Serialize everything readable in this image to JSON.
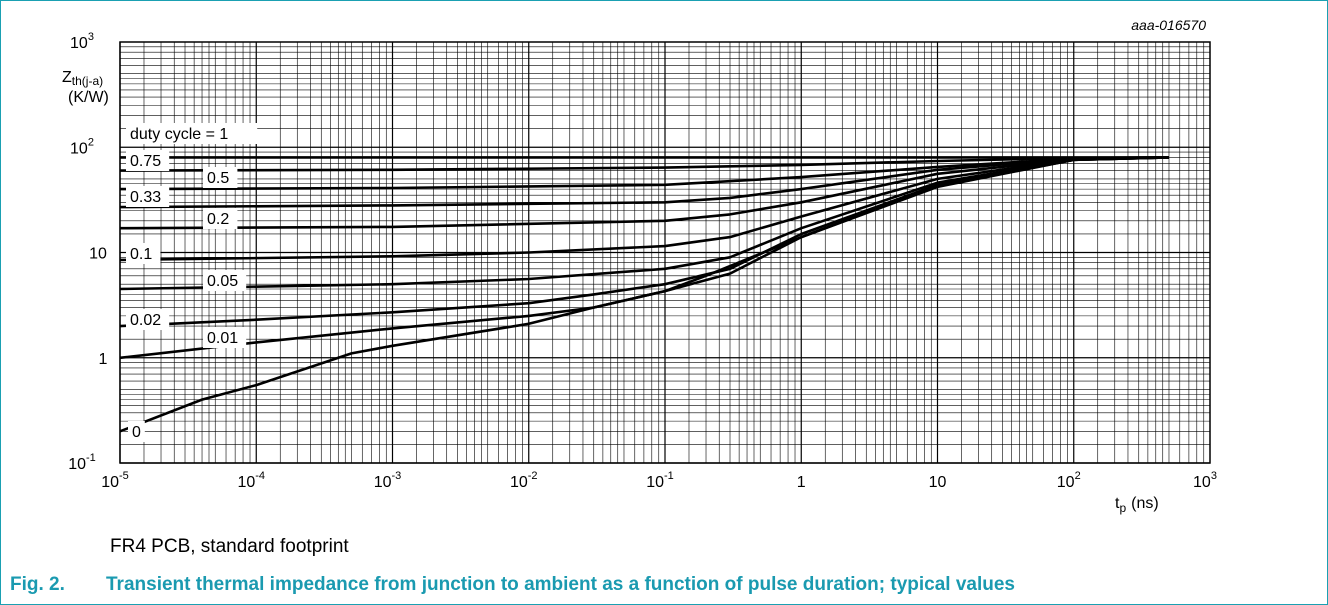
{
  "colors": {
    "frame": "#1aa0b2",
    "caption": "#1a9ab0",
    "line": "#000000"
  },
  "chart_data": {
    "type": "line",
    "id_label": "aaa-016570",
    "ylabel_main": "Z",
    "ylabel_sub": "th(j-a)",
    "ylabel_unit": "(K/W)",
    "xlabel_main": "t",
    "xlabel_sub": "p",
    "xlabel_unit": "(ns)",
    "x_scale": "log",
    "y_scale": "log",
    "xlim": [
      1e-05,
      1000
    ],
    "ylim": [
      0.1,
      1000
    ],
    "grid": true,
    "x_ticks": [
      {
        "base": "10",
        "exp": "-5",
        "value": 1e-05
      },
      {
        "base": "10",
        "exp": "-4",
        "value": 0.0001
      },
      {
        "base": "10",
        "exp": "-3",
        "value": 0.001
      },
      {
        "base": "10",
        "exp": "-2",
        "value": 0.01
      },
      {
        "base": "10",
        "exp": "-1",
        "value": 0.1
      },
      {
        "base": "1",
        "exp": "",
        "value": 1
      },
      {
        "base": "10",
        "exp": "",
        "value": 10
      },
      {
        "base": "10",
        "exp": "2",
        "value": 100
      },
      {
        "base": "10",
        "exp": "3",
        "value": 1000
      }
    ],
    "y_ticks": [
      {
        "base": "10",
        "exp": "3",
        "value": 1000
      },
      {
        "base": "10",
        "exp": "2",
        "value": 100
      },
      {
        "base": "10",
        "exp": "",
        "value": 10
      },
      {
        "base": "1",
        "exp": "",
        "value": 1
      },
      {
        "base": "10",
        "exp": "-1",
        "value": 0.1
      }
    ],
    "series": [
      {
        "name": "duty cycle = 1",
        "x": [
          1e-05,
          0.001,
          0.1,
          1,
          10,
          100,
          500
        ],
        "y": [
          80,
          80,
          80,
          80,
          80,
          80,
          80
        ]
      },
      {
        "name": "0.75",
        "x": [
          1e-05,
          0.001,
          0.1,
          1,
          10,
          100,
          500
        ],
        "y": [
          60,
          61,
          64,
          68,
          74,
          79,
          80
        ]
      },
      {
        "name": "0.5",
        "x": [
          1e-05,
          0.001,
          0.1,
          1,
          10,
          100,
          500
        ],
        "y": [
          40,
          41,
          44,
          52,
          65,
          78,
          80
        ]
      },
      {
        "name": "0.33",
        "x": [
          1e-05,
          0.001,
          0.1,
          0.3,
          1,
          10,
          100,
          500
        ],
        "y": [
          27,
          28,
          30,
          33,
          40,
          61,
          78,
          80
        ]
      },
      {
        "name": "0.2",
        "x": [
          1e-05,
          0.001,
          0.1,
          0.3,
          1,
          10,
          100,
          500
        ],
        "y": [
          17,
          17.5,
          20,
          23,
          30,
          56,
          77,
          80
        ]
      },
      {
        "name": "0.1",
        "x": [
          1e-05,
          0.001,
          0.01,
          0.1,
          0.3,
          1,
          10,
          100,
          500
        ],
        "y": [
          8.5,
          9.2,
          10,
          11.5,
          14,
          22,
          50,
          77,
          80
        ]
      },
      {
        "name": "0.05",
        "x": [
          1e-05,
          0.001,
          0.01,
          0.1,
          0.3,
          1,
          10,
          100,
          500
        ],
        "y": [
          4.5,
          5,
          5.6,
          7,
          9,
          17,
          46,
          76,
          80
        ]
      },
      {
        "name": "0.02",
        "x": [
          1e-05,
          0.0001,
          0.001,
          0.01,
          0.03,
          0.1,
          0.3,
          1,
          10,
          100,
          500
        ],
        "y": [
          2,
          2.3,
          2.7,
          3.3,
          4,
          5,
          7,
          15,
          44,
          76,
          80
        ]
      },
      {
        "name": "0.01",
        "x": [
          1e-05,
          0.0001,
          0.001,
          0.01,
          0.03,
          0.1,
          0.3,
          1,
          10,
          100,
          500
        ],
        "y": [
          1,
          1.4,
          1.9,
          2.5,
          3,
          4.3,
          6.3,
          14,
          43,
          76,
          80
        ]
      },
      {
        "name": "0",
        "x": [
          1e-05,
          4e-05,
          0.0001,
          0.0005,
          0.001,
          0.01,
          0.03,
          0.1,
          0.2,
          1,
          10,
          100,
          500
        ],
        "y": [
          0.2,
          0.4,
          0.55,
          1.1,
          1.3,
          2.1,
          3,
          4.3,
          6,
          14,
          42,
          76,
          80
        ]
      }
    ]
  },
  "note": "FR4 PCB, standard footprint",
  "caption": {
    "number": "Fig. 2.",
    "text": "Transient thermal impedance from junction to ambient as a function of pulse duration; typical values"
  }
}
